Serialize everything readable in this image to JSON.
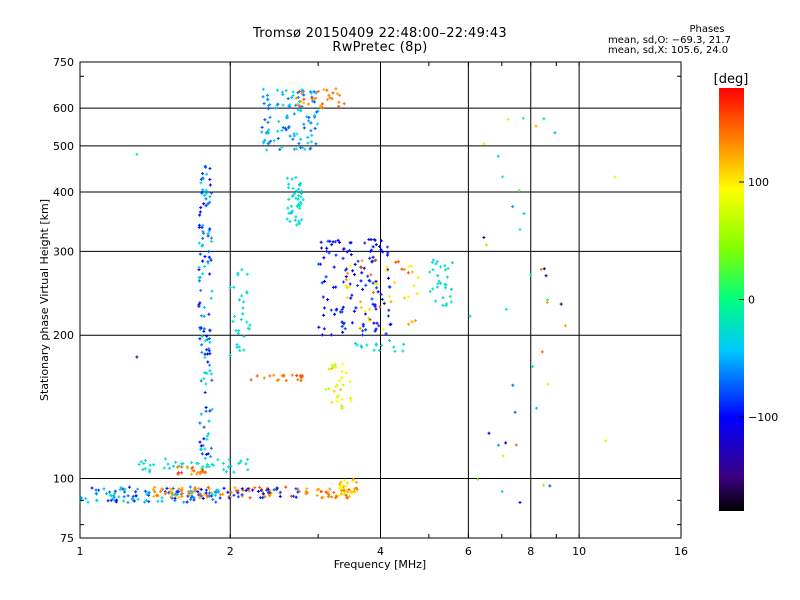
{
  "header": {
    "title_line1": "Tromsø 20150409 22:48:00–22:49:43",
    "title_line2": "RwPretec (8p)",
    "phases_label": "Phases",
    "phase_o": "mean, sd,O: −69.3, 21.7",
    "phase_x": "mean, sd,X: 105.6, 24.0"
  },
  "colorbar": {
    "unit_label": "[deg]",
    "ticks": [
      {
        "value": 100,
        "label": "100"
      },
      {
        "value": 0,
        "label": "0"
      },
      {
        "value": -100,
        "label": "−100"
      }
    ],
    "range": [
      -180,
      180
    ]
  },
  "chart_data": {
    "type": "scatter",
    "title": "Tromsø 20150409 22:48:00–22:49:43",
    "subtitle": "RwPretec (8p)",
    "xlabel": "Frequency [MHz]",
    "ylabel": "Stationary phase Virtual Height [km]",
    "x_scale": "log",
    "y_scale": "log",
    "xlim": [
      1,
      16
    ],
    "ylim": [
      75,
      750
    ],
    "x_ticks": [
      1,
      2,
      4,
      6,
      8,
      10,
      16
    ],
    "y_ticks": [
      75,
      100,
      200,
      300,
      400,
      500,
      600,
      750
    ],
    "grid": true,
    "color_axis": "phase [deg]",
    "traces": [
      {
        "f_range": [
          1.0,
          1.9
        ],
        "h_range": [
          89,
          96
        ],
        "phase_range": [
          -110,
          -20
        ],
        "count": 120
      },
      {
        "f_range": [
          1.4,
          1.85
        ],
        "h_range": [
          91,
          96
        ],
        "phase_range": [
          110,
          150
        ],
        "count": 40
      },
      {
        "f_range": [
          1.9,
          3.6
        ],
        "h_range": [
          91,
          96
        ],
        "phase_range": [
          110,
          160
        ],
        "count": 70
      },
      {
        "f_range": [
          1.9,
          2.8
        ],
        "h_range": [
          91,
          96
        ],
        "phase_range": [
          -110,
          -70
        ],
        "count": 30
      },
      {
        "f_range": [
          3.3,
          3.6
        ],
        "h_range": [
          92,
          100
        ],
        "phase_range": [
          70,
          130
        ],
        "count": 25
      },
      {
        "f_range": [
          1.3,
          2.2
        ],
        "h_range": [
          103,
          110
        ],
        "phase_range": [
          -40,
          -10
        ],
        "count": 45
      },
      {
        "f_range": [
          1.55,
          1.8
        ],
        "h_range": [
          101,
          106
        ],
        "phase_range": [
          120,
          170
        ],
        "count": 20
      },
      {
        "f_range": [
          1.73,
          1.84
        ],
        "h_range": [
          110,
          460
        ],
        "phase_range": [
          -110,
          -20
        ],
        "count": 130
      },
      {
        "f_range": [
          2.0,
          2.2
        ],
        "h_range": [
          180,
          280
        ],
        "phase_range": [
          -40,
          -15
        ],
        "count": 30
      },
      {
        "f_range": [
          2.3,
          3.0
        ],
        "h_range": [
          490,
          660
        ],
        "phase_range": [
          -80,
          -20
        ],
        "count": 110
      },
      {
        "f_range": [
          2.7,
          3.4
        ],
        "h_range": [
          600,
          660
        ],
        "phase_range": [
          120,
          160
        ],
        "count": 30
      },
      {
        "f_range": [
          2.6,
          2.8
        ],
        "h_range": [
          340,
          430
        ],
        "phase_range": [
          -40,
          -15
        ],
        "count": 45
      },
      {
        "f_range": [
          3.0,
          4.2
        ],
        "h_range": [
          200,
          320
        ],
        "phase_range": [
          -120,
          -80
        ],
        "count": 130
      },
      {
        "f_range": [
          3.3,
          4.8
        ],
        "h_range": [
          200,
          290
        ],
        "phase_range": [
          80,
          160
        ],
        "count": 45
      },
      {
        "f_range": [
          5.0,
          5.6
        ],
        "h_range": [
          230,
          290
        ],
        "phase_range": [
          -40,
          -10
        ],
        "count": 30
      },
      {
        "f_range": [
          2.2,
          2.8
        ],
        "h_range": [
          160,
          165
        ],
        "phase_range": [
          130,
          160
        ],
        "count": 20
      },
      {
        "f_range": [
          3.1,
          3.5
        ],
        "h_range": [
          140,
          175
        ],
        "phase_range": [
          60,
          120
        ],
        "count": 30
      },
      {
        "f_range": [
          3.5,
          4.6
        ],
        "h_range": [
          185,
          195
        ],
        "phase_range": [
          -40,
          -20
        ],
        "count": 15
      },
      {
        "f_range": [
          6.0,
          9.5
        ],
        "h_range": [
          80,
          640
        ],
        "phase_range": [
          -160,
          150
        ],
        "count": 40
      }
    ],
    "note_points": [
      {
        "f": 1.3,
        "h": 480,
        "phase": -10
      },
      {
        "f": 1.3,
        "h": 180,
        "phase": -150
      },
      {
        "f": 11.8,
        "h": 430,
        "phase": 100
      },
      {
        "f": 11.3,
        "h": 120,
        "phase": 100
      }
    ]
  }
}
